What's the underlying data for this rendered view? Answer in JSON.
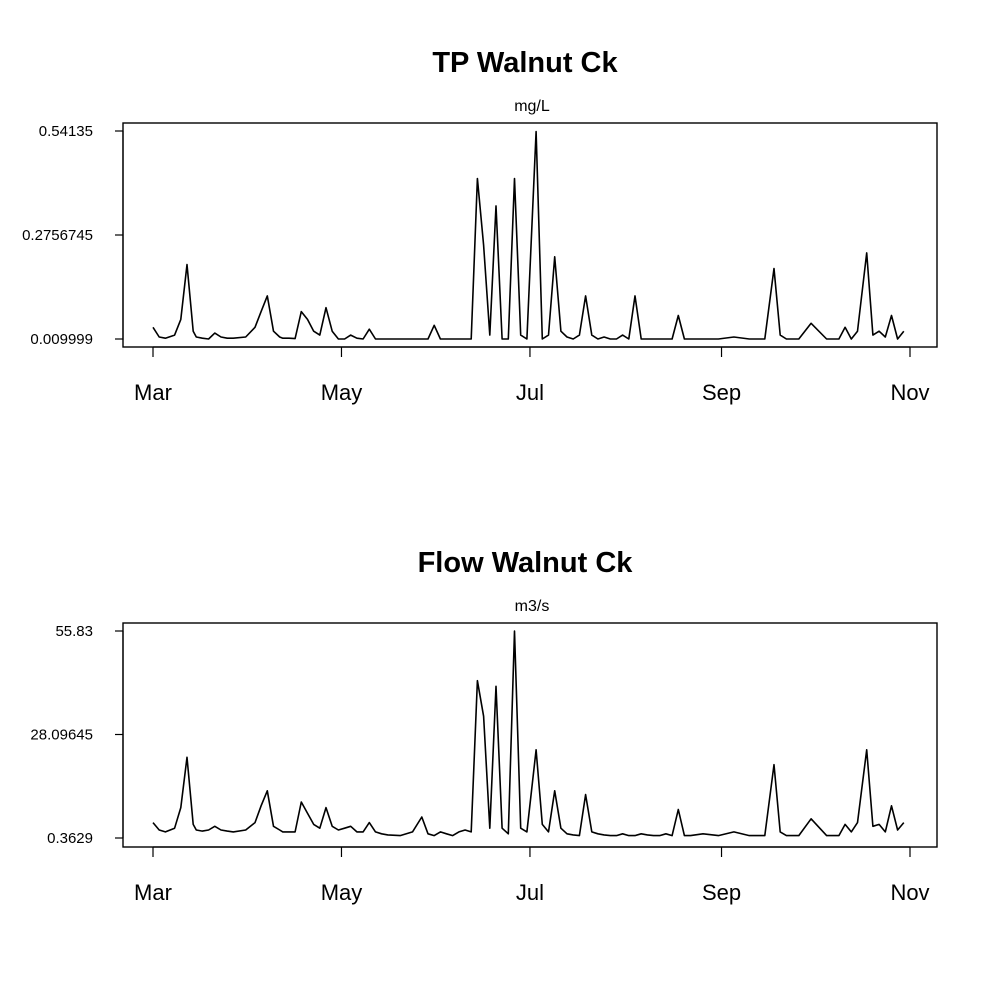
{
  "chart_data": [
    {
      "type": "line",
      "title": "TP Walnut Ck",
      "subtitle": "mg/L",
      "xlabel": "",
      "ylabel": "",
      "x_ticks": [
        "Mar",
        "May",
        "Jul",
        "Sep",
        "Nov"
      ],
      "y_ticks": [
        "0.009999",
        "0.2756745",
        "0.54135"
      ],
      "ylim": [
        0.009999,
        0.54135
      ],
      "x": [
        "03-01",
        "03-03",
        "03-05",
        "03-08",
        "03-10",
        "03-12",
        "03-14",
        "03-15",
        "03-17",
        "03-19",
        "03-21",
        "03-23",
        "03-25",
        "03-27",
        "03-31",
        "04-03",
        "04-05",
        "04-07",
        "04-09",
        "04-11",
        "04-12",
        "04-14",
        "04-16",
        "04-18",
        "04-20",
        "04-22",
        "04-24",
        "04-26",
        "04-28",
        "04-30",
        "05-02",
        "05-04",
        "05-06",
        "05-08",
        "05-10",
        "05-12",
        "05-14",
        "05-16",
        "05-20",
        "05-24",
        "05-27",
        "05-29",
        "05-31",
        "06-02",
        "06-04",
        "06-06",
        "06-08",
        "06-10",
        "06-12",
        "06-14",
        "06-16",
        "06-18",
        "06-20",
        "06-22",
        "06-24",
        "06-26",
        "06-28",
        "06-30",
        "07-03",
        "07-05",
        "07-07",
        "07-09",
        "07-11",
        "07-13",
        "07-15",
        "07-17",
        "07-19",
        "07-21",
        "07-23",
        "07-25",
        "07-27",
        "07-29",
        "07-31",
        "08-02",
        "08-04",
        "08-06",
        "08-08",
        "08-10",
        "08-12",
        "08-14",
        "08-16",
        "08-18",
        "08-20",
        "08-22",
        "08-26",
        "08-31",
        "09-05",
        "09-10",
        "09-15",
        "09-18",
        "09-20",
        "09-22",
        "09-24",
        "09-26",
        "09-30",
        "10-05",
        "10-09",
        "10-11",
        "10-13",
        "10-15",
        "10-18",
        "10-20",
        "10-22",
        "10-24",
        "10-26",
        "10-28",
        "10-30"
      ],
      "series": [
        {
          "values": [
            0.04,
            0.015,
            0.012,
            0.02,
            0.06,
            0.2,
            0.03,
            0.015,
            0.012,
            0.01,
            0.025,
            0.015,
            0.012,
            0.012,
            0.015,
            0.04,
            0.08,
            0.12,
            0.03,
            0.015,
            0.012,
            0.012,
            0.011,
            0.08,
            0.06,
            0.03,
            0.02,
            0.09,
            0.03,
            0.01,
            0.01,
            0.02,
            0.012,
            0.01,
            0.035,
            0.01,
            0.01,
            0.01,
            0.01,
            0.01,
            0.01,
            0.01,
            0.045,
            0.01,
            0.01,
            0.01,
            0.01,
            0.01,
            0.01,
            0.42,
            0.25,
            0.02,
            0.35,
            0.01,
            0.01,
            0.42,
            0.02,
            0.01,
            0.54,
            0.01,
            0.02,
            0.22,
            0.03,
            0.015,
            0.01,
            0.02,
            0.12,
            0.02,
            0.01,
            0.015,
            0.01,
            0.01,
            0.02,
            0.01,
            0.12,
            0.01,
            0.01,
            0.01,
            0.01,
            0.01,
            0.01,
            0.07,
            0.01,
            0.01,
            0.01,
            0.01,
            0.015,
            0.01,
            0.01,
            0.19,
            0.02,
            0.01,
            0.01,
            0.01,
            0.05,
            0.01,
            0.01,
            0.04,
            0.01,
            0.03,
            0.23,
            0.02,
            0.03,
            0.015,
            0.07,
            0.01,
            0.03
          ],
          "values_note_removed": ""
        }
      ]
    },
    {
      "type": "line",
      "title": "Flow Walnut Ck",
      "subtitle": "m3/s",
      "xlabel": "",
      "ylabel": "",
      "x_ticks": [
        "Mar",
        "May",
        "Jul",
        "Sep",
        "Nov"
      ],
      "y_ticks": [
        "0.3629",
        "28.09645",
        "55.83"
      ],
      "ylim": [
        0.3629,
        55.83
      ],
      "x": [
        "03-01",
        "03-03",
        "03-05",
        "03-08",
        "03-10",
        "03-12",
        "03-14",
        "03-15",
        "03-17",
        "03-19",
        "03-21",
        "03-23",
        "03-25",
        "03-27",
        "03-31",
        "04-03",
        "04-05",
        "04-07",
        "04-09",
        "04-11",
        "04-12",
        "04-14",
        "04-16",
        "04-18",
        "04-20",
        "04-22",
        "04-24",
        "04-26",
        "04-28",
        "04-30",
        "05-02",
        "05-04",
        "05-06",
        "05-08",
        "05-10",
        "05-12",
        "05-14",
        "05-16",
        "05-20",
        "05-24",
        "05-27",
        "05-29",
        "05-31",
        "06-02",
        "06-04",
        "06-06",
        "06-08",
        "06-10",
        "06-12",
        "06-14",
        "06-16",
        "06-18",
        "06-20",
        "06-22",
        "06-24",
        "06-26",
        "06-28",
        "06-30",
        "07-03",
        "07-05",
        "07-07",
        "07-09",
        "07-11",
        "07-13",
        "07-15",
        "07-17",
        "07-19",
        "07-21",
        "07-23",
        "07-25",
        "07-27",
        "07-29",
        "07-31",
        "08-02",
        "08-04",
        "08-06",
        "08-08",
        "08-10",
        "08-12",
        "08-14",
        "08-16",
        "08-18",
        "08-20",
        "08-22",
        "08-26",
        "08-31",
        "09-05",
        "09-10",
        "09-15",
        "09-18",
        "09-20",
        "09-22",
        "09-24",
        "09-26",
        "09-30",
        "10-05",
        "10-09",
        "10-11",
        "10-13",
        "10-15",
        "10-18",
        "10-20",
        "10-22",
        "10-24",
        "10-26",
        "10-28",
        "10-30"
      ],
      "series": [
        {
          "values": [
            4.5,
            2.5,
            2.0,
            3.0,
            8.5,
            22.0,
            4.0,
            2.5,
            2.2,
            2.5,
            3.5,
            2.5,
            2.2,
            2.0,
            2.5,
            4.5,
            9.0,
            13.0,
            3.5,
            2.5,
            2.0,
            2.0,
            2.0,
            10.0,
            7.0,
            4.0,
            3.0,
            8.5,
            3.5,
            2.5,
            3.0,
            3.5,
            2.0,
            2.0,
            4.5,
            2.0,
            1.5,
            1.2,
            1.0,
            2.0,
            6.0,
            1.5,
            1.0,
            2.0,
            1.5,
            1.0,
            2.0,
            2.5,
            2.0,
            42.5,
            33.0,
            3.0,
            41.0,
            3.0,
            1.5,
            55.8,
            3.0,
            2.0,
            24.0,
            4.0,
            2.0,
            13.0,
            3.0,
            1.5,
            1.2,
            1.0,
            12.0,
            2.0,
            1.5,
            1.2,
            1.0,
            1.0,
            1.5,
            1.0,
            1.0,
            1.5,
            1.2,
            1.0,
            1.0,
            1.5,
            1.0,
            8.0,
            1.0,
            1.0,
            1.5,
            1.0,
            2.0,
            1.0,
            1.0,
            20.0,
            2.0,
            1.0,
            1.0,
            1.0,
            5.5,
            1.0,
            1.0,
            4.0,
            2.0,
            4.5,
            24.0,
            3.5,
            4.0,
            2.0,
            9.0,
            2.5,
            4.5
          ]
        }
      ]
    }
  ]
}
